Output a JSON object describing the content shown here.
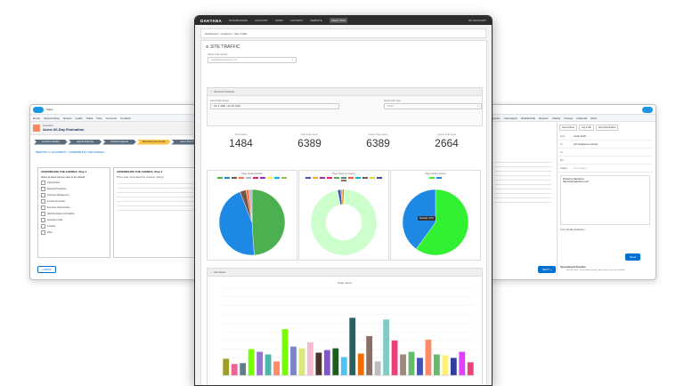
{
  "left_window": {
    "app_name": "Sales",
    "nav_items": [
      "Home",
      "Opportunities",
      "Quotes",
      "Leads",
      "Tasks",
      "Files",
      "Accounts",
      "Contacts"
    ],
    "record_type": "Evaluation",
    "record_title": "Acme 60-Day Evaluation",
    "path_steps": [
      "Introduce Dealing",
      "Agenda Planning",
      "Introduce Agenda",
      "Discussing the Agenda",
      "Demo Planning"
    ],
    "active_step": 3,
    "breadcrumb": "MEETING 1 ALIGNMENT > ASSEMBLING THE AGENDA",
    "panel_left_title": "ASSEMBLING THE AGENDA: Step 1",
    "panel_left_prompt": "Select at least one use case to be shown!",
    "use_cases": [
      "Opportunities",
      "Meeting Preparation",
      "Schedule Management",
      "Account & Contact",
      "Executive Opportunities",
      "Q&A Resolution and Insights",
      "Scheduled Calls",
      "Activities",
      "Other"
    ],
    "panel_right_title": "ASSEMBLING THE AGENDA: Step 2",
    "panel_right_text": "This is what I know about the customer, going in",
    "back_label": "« BACK",
    "next_label": "NEXT »"
  },
  "right_window": {
    "tabs": [
      "Send Actions",
      "Log a Call",
      "New Opportunities"
    ],
    "fields": [
      "From",
      "To",
      "Cc",
      "Bcc",
      "Subject"
    ],
    "from_value": "Jordan Smith",
    "to_value": "john.doe@acme.example",
    "subject_placeholder": "Enter Subject...",
    "signature_line1": "Printed by Salesforce",
    "signature_line2": "http://www.salesforce.com",
    "related_to": "Acme 60-Day Evaluation",
    "send_label": "Send",
    "upcoming_label": "Upcoming & Overdue",
    "upcoming_note": "No next steps. To get things moving, add a task or set up a meeting."
  },
  "main_window": {
    "brand": "DAKTANA",
    "nav": [
      {
        "label": "DASHBOARDS",
        "active": false
      },
      {
        "label": "ACCOUNT",
        "active": false
      },
      {
        "label": "SWEP",
        "active": false
      },
      {
        "label": "CONTENT",
        "active": false
      },
      {
        "label": "WEBSITE",
        "active": false
      },
      {
        "label": "ANALYTICS",
        "active": true
      }
    ],
    "user": "MY ACCOUNT",
    "breadcrumb": "Dashboard > Analytics > Site Traffic",
    "page_title": "SITE TRAFFIC",
    "select_label": "Select a site domain",
    "select_value": "wwwdaktanaanalytics.com",
    "filter_header": "Advanced Settings",
    "date_label": "Select Date Range",
    "date_value": "Jun 1, 2020 - Jun 30, 2020",
    "type_label": "Select Data Type",
    "type_value": "Select",
    "stats": [
      {
        "label": "Total Visitors",
        "value": "1484"
      },
      {
        "label": "Total Page Views",
        "value": "6389"
      },
      {
        "label": "Unique Page Views",
        "value": "6389"
      },
      {
        "label": "Unique Total Views",
        "value": "2664"
      }
    ],
    "card_titles": [
      "Page Viewing Mobile",
      "Page Views by Country",
      "Page Viewing Device"
    ],
    "pie_tooltip": "Desktop: 47%",
    "hist_header": "Visit Metric",
    "hist_title": "Page Views"
  },
  "colors": {
    "sf_blue": "#0070d2",
    "path_active": "#f6c343",
    "nav_dark": "#2d2d2d"
  },
  "chart_data": [
    {
      "type": "pie",
      "title": "Page Viewing Mobile",
      "values": [
        49,
        45,
        3,
        1.5,
        1.5
      ],
      "colors": [
        "#4caf50",
        "#1e88e5",
        "#795548",
        "#ff7043",
        "#b0bec5"
      ]
    },
    {
      "type": "pie",
      "title": "Page Views by Country",
      "values": [
        97,
        1.5,
        1,
        0.5
      ],
      "colors": [
        "#ccffcc",
        "#3f51b5",
        "#f9a825",
        "#9c27b0"
      ],
      "donut": true
    },
    {
      "type": "pie",
      "title": "Page Viewing Device",
      "values": [
        60,
        40
      ],
      "colors": [
        "#32f032",
        "#1e88e5"
      ]
    },
    {
      "type": "bar",
      "title": "Page Views",
      "ylim": [
        0,
        10000
      ],
      "values": [
        1900,
        1300,
        1400,
        3000,
        2700,
        2400,
        1600,
        5300,
        3300,
        3100,
        3800,
        2600,
        2900,
        3100,
        2100,
        6600,
        2500,
        4500,
        1600,
        6400,
        4000,
        2400,
        2700,
        2000,
        4100,
        2400,
        2300,
        2000,
        2700,
        1500
      ],
      "colors": [
        "#9e9d24",
        "#f06292",
        "#607d8b",
        "#76ff03",
        "#9575cd",
        "#4db6ac",
        "#ff8a65",
        "#76ff03",
        "#7986cb",
        "#dce775",
        "#f8bbd0",
        "#4e342e",
        "#7e57c2",
        "#1b5e20",
        "#4fc3f7",
        "#2e5e5e",
        "#ef6c00",
        "#8d6e63",
        "#bdbdbd",
        "#80cbc4",
        "#ec407a",
        "#a1887f",
        "#66bb6a",
        "#3f51b5",
        "#ff8a65",
        "#66bb6a",
        "#fff176",
        "#303f9f",
        "#e040fb",
        "#ec407a"
      ]
    }
  ]
}
